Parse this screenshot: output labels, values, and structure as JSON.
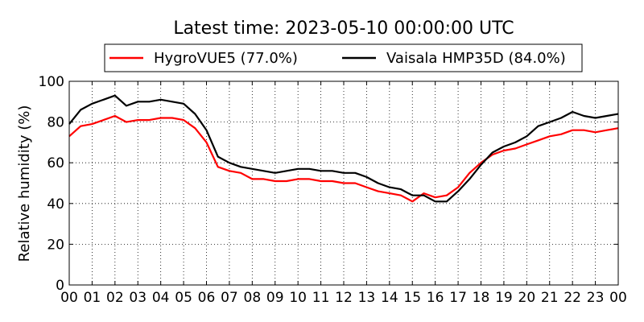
{
  "chart_data": {
    "type": "line",
    "title": "Latest time: 2023-05-10 00:00:00 UTC",
    "xlabel": "",
    "ylabel": "Relative humidity (%)",
    "xlim": [
      0,
      24
    ],
    "ylim": [
      0,
      100
    ],
    "grid": true,
    "legend_position": "top",
    "x_tick_labels": [
      "00",
      "01",
      "02",
      "03",
      "04",
      "05",
      "06",
      "07",
      "08",
      "09",
      "10",
      "11",
      "12",
      "13",
      "14",
      "15",
      "16",
      "17",
      "18",
      "19",
      "20",
      "21",
      "22",
      "23",
      "00"
    ],
    "y_ticks": [
      0,
      20,
      40,
      60,
      80,
      100
    ],
    "x": [
      0,
      0.5,
      1,
      1.5,
      2,
      2.5,
      3,
      3.5,
      4,
      4.5,
      5,
      5.5,
      6,
      6.5,
      7,
      7.5,
      8,
      8.5,
      9,
      9.5,
      10,
      10.5,
      11,
      11.5,
      12,
      12.5,
      13,
      13.5,
      14,
      14.5,
      15,
      15.5,
      16,
      16.5,
      17,
      17.5,
      18,
      18.5,
      19,
      19.5,
      20,
      20.5,
      21,
      21.5,
      22,
      22.5,
      23,
      23.5,
      24
    ],
    "series": [
      {
        "name": "HygroVUE5 (77.0%)",
        "color": "#ff0000",
        "values": [
          73,
          78,
          79,
          81,
          83,
          80,
          81,
          81,
          82,
          82,
          81,
          77,
          70,
          58,
          56,
          55,
          52,
          52,
          51,
          51,
          52,
          52,
          51,
          51,
          50,
          50,
          48,
          46,
          45,
          44,
          41,
          45,
          43,
          44,
          48,
          55,
          60,
          64,
          66,
          67,
          69,
          71,
          73,
          74,
          76,
          76,
          75,
          76,
          77
        ]
      },
      {
        "name": "Vaisala HMP35D (84.0%)",
        "color": "#000000",
        "values": [
          79,
          86,
          89,
          91,
          93,
          88,
          90,
          90,
          91,
          90,
          89,
          84,
          76,
          63,
          60,
          58,
          57,
          56,
          55,
          56,
          57,
          57,
          56,
          56,
          55,
          55,
          53,
          50,
          48,
          47,
          44,
          44,
          41,
          41,
          46,
          52,
          59,
          65,
          68,
          70,
          73,
          78,
          80,
          82,
          85,
          83,
          82,
          83,
          84
        ]
      }
    ]
  }
}
